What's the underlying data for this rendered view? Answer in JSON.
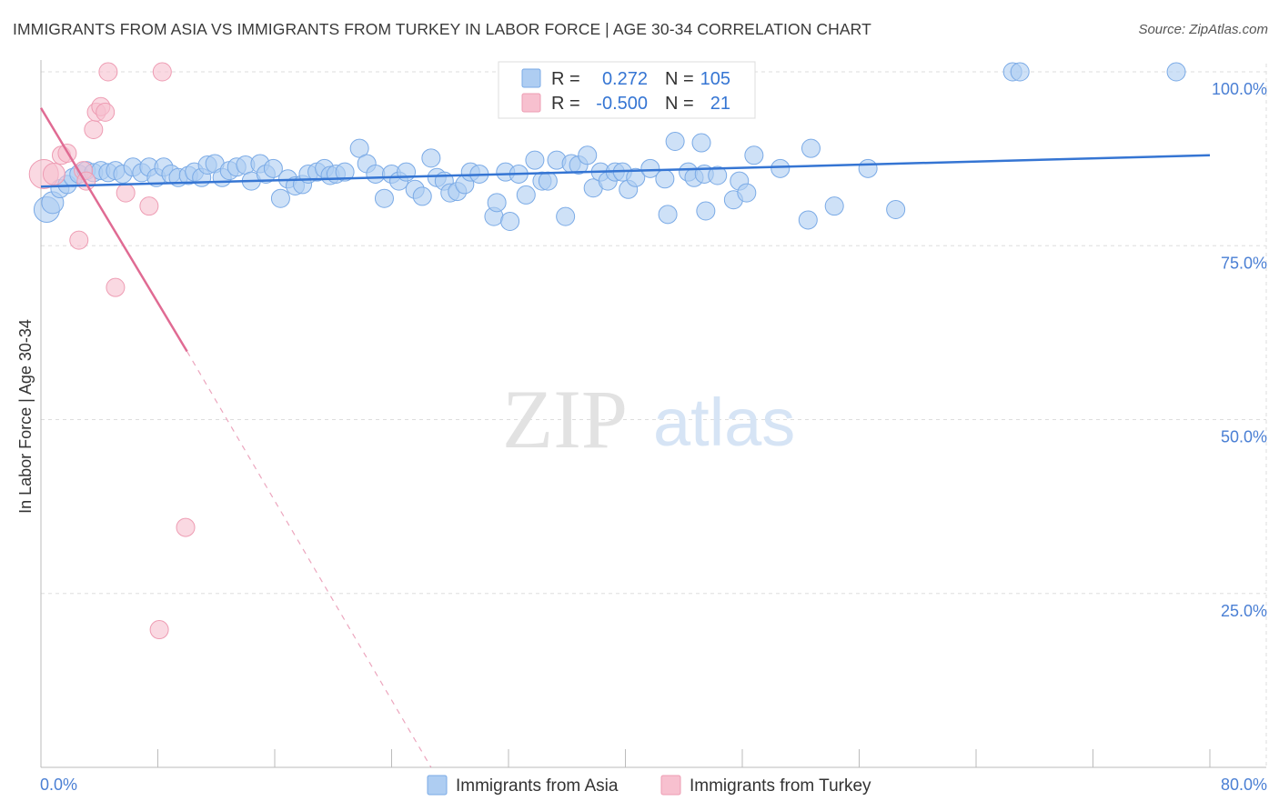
{
  "title": "IMMIGRANTS FROM ASIA VS IMMIGRANTS FROM TURKEY IN LABOR FORCE | AGE 30-34 CORRELATION CHART",
  "source": "Source: ZipAtlas.com",
  "watermark": {
    "zip": "ZIP",
    "atlas": "atlas"
  },
  "legend_top": [
    {
      "r_label": "R =",
      "r_value": "0.272",
      "n_label": "N =",
      "n_value": "105"
    },
    {
      "r_label": "R =",
      "r_value": "-0.500",
      "n_label": "N =",
      "n_value": "21"
    }
  ],
  "legend_bottom": [
    "Immigrants from Asia",
    "Immigrants from Turkey"
  ],
  "colors": {
    "asia_fill": "#aecdf2",
    "asia_stroke": "#7aaae6",
    "asia_line": "#3575d3",
    "turkey_fill": "#f7c0cf",
    "turkey_stroke": "#ee9cb3",
    "turkey_line": "#e06b93",
    "tick": "#4a7fd4",
    "grid": "#dddddd"
  },
  "chart_data": {
    "type": "scatter",
    "title": "IMMIGRANTS FROM ASIA VS IMMIGRANTS FROM TURKEY IN LABOR FORCE | AGE 30-34 CORRELATION CHART",
    "xlabel": "",
    "ylabel": "In Labor Force | Age 30-34",
    "xlim": [
      0,
      80
    ],
    "ylim": [
      0,
      100
    ],
    "x_tick_labels": [
      "0.0%",
      "80.0%"
    ],
    "y_ticks": [
      25,
      50,
      75,
      100
    ],
    "y_tick_labels": [
      "25.0%",
      "50.0%",
      "75.0%",
      "100.0%"
    ],
    "grid": true,
    "series": [
      {
        "name": "Immigrants from Asia",
        "r": 0.272,
        "n": 105,
        "trend": {
          "x": [
            0,
            80
          ],
          "y": [
            83.5,
            88.0
          ]
        },
        "points": [
          [
            0.4,
            80.2,
            14
          ],
          [
            0.8,
            81.2,
            12
          ],
          [
            1.3,
            83.2,
            10
          ],
          [
            1.8,
            83.8,
            10
          ],
          [
            2.2,
            84.8,
            10
          ],
          [
            2.6,
            85.3,
            10
          ],
          [
            3.1,
            85.8,
            10
          ],
          [
            3.6,
            85.5,
            10
          ],
          [
            4.1,
            85.8,
            10
          ],
          [
            4.6,
            85.5,
            10
          ],
          [
            5.1,
            85.8,
            10
          ],
          [
            5.6,
            85.3,
            10
          ],
          [
            6.3,
            86.3,
            10
          ],
          [
            6.9,
            85.5,
            10
          ],
          [
            7.4,
            86.3,
            10
          ],
          [
            7.9,
            84.8,
            10
          ],
          [
            8.4,
            86.3,
            10
          ],
          [
            8.9,
            85.3,
            10
          ],
          [
            9.4,
            84.8,
            10
          ],
          [
            10.1,
            85.1,
            10
          ],
          [
            10.5,
            85.6,
            10
          ],
          [
            11.0,
            84.8,
            10
          ],
          [
            11.4,
            86.6,
            10
          ],
          [
            11.9,
            86.8,
            10
          ],
          [
            12.4,
            84.8,
            10
          ],
          [
            12.9,
            85.8,
            10
          ],
          [
            13.4,
            86.3,
            10
          ],
          [
            14.0,
            86.6,
            10
          ],
          [
            14.4,
            84.3,
            10
          ],
          [
            15.0,
            86.8,
            10
          ],
          [
            15.4,
            85.3,
            10
          ],
          [
            15.9,
            86.1,
            10
          ],
          [
            16.4,
            81.8,
            10
          ],
          [
            16.9,
            84.6,
            10
          ],
          [
            17.4,
            83.6,
            10
          ],
          [
            17.9,
            83.8,
            10
          ],
          [
            18.3,
            85.3,
            10
          ],
          [
            18.9,
            85.6,
            10
          ],
          [
            19.4,
            86.1,
            10
          ],
          [
            19.8,
            85.1,
            10
          ],
          [
            20.2,
            85.3,
            10
          ],
          [
            20.8,
            85.6,
            10
          ],
          [
            21.8,
            89.0,
            10
          ],
          [
            22.3,
            86.8,
            10
          ],
          [
            22.9,
            85.3,
            10
          ],
          [
            23.5,
            81.8,
            10
          ],
          [
            24.0,
            85.3,
            10
          ],
          [
            24.5,
            84.3,
            10
          ],
          [
            25.0,
            85.6,
            10
          ],
          [
            25.6,
            83.1,
            10
          ],
          [
            26.1,
            82.1,
            10
          ],
          [
            26.7,
            87.6,
            10
          ],
          [
            27.1,
            84.8,
            10
          ],
          [
            27.6,
            84.3,
            10
          ],
          [
            28.0,
            82.6,
            10
          ],
          [
            28.5,
            82.8,
            10
          ],
          [
            29.0,
            83.8,
            10
          ],
          [
            29.4,
            85.6,
            10
          ],
          [
            30.0,
            85.3,
            10
          ],
          [
            31.0,
            79.2,
            10
          ],
          [
            31.2,
            81.2,
            10
          ],
          [
            31.8,
            85.6,
            10
          ],
          [
            32.1,
            78.5,
            10
          ],
          [
            32.7,
            85.3,
            10
          ],
          [
            33.2,
            82.3,
            10
          ],
          [
            33.8,
            87.3,
            10
          ],
          [
            34.3,
            84.3,
            10
          ],
          [
            34.7,
            84.3,
            10
          ],
          [
            35.3,
            87.3,
            10
          ],
          [
            35.9,
            79.2,
            10
          ],
          [
            36.3,
            86.8,
            10
          ],
          [
            36.8,
            86.6,
            10
          ],
          [
            37.4,
            88.0,
            10
          ],
          [
            37.8,
            83.3,
            10
          ],
          [
            38.3,
            85.6,
            10
          ],
          [
            38.8,
            84.3,
            10
          ],
          [
            39.3,
            85.6,
            10
          ],
          [
            39.8,
            85.6,
            10
          ],
          [
            40.2,
            83.1,
            10
          ],
          [
            40.7,
            84.8,
            10
          ],
          [
            41.7,
            86.1,
            10
          ],
          [
            42.7,
            84.6,
            10
          ],
          [
            42.9,
            79.5,
            10
          ],
          [
            43.4,
            90.0,
            10
          ],
          [
            44.3,
            85.6,
            10
          ],
          [
            44.7,
            84.8,
            10
          ],
          [
            45.4,
            85.3,
            10
          ],
          [
            45.2,
            89.8,
            10
          ],
          [
            45.5,
            80.0,
            10
          ],
          [
            46.3,
            85.1,
            10
          ],
          [
            47.4,
            81.6,
            10
          ],
          [
            47.8,
            84.3,
            10
          ],
          [
            48.3,
            82.6,
            10
          ],
          [
            48.8,
            88.0,
            10
          ],
          [
            50.6,
            86.1,
            10
          ],
          [
            52.5,
            78.7,
            10
          ],
          [
            52.7,
            89.0,
            10
          ],
          [
            54.3,
            80.7,
            10
          ],
          [
            56.6,
            86.1,
            10
          ],
          [
            58.5,
            80.2,
            10
          ],
          [
            66.5,
            100.0,
            10
          ],
          [
            67.0,
            100.0,
            10
          ],
          [
            77.7,
            100.0,
            10
          ]
        ]
      },
      {
        "name": "Immigrants from Turkey",
        "r": -0.5,
        "n": 21,
        "trend_solid": {
          "x": [
            0,
            10.0
          ],
          "y": [
            94.8,
            59.8
          ]
        },
        "trend_dashed": {
          "x": [
            10.0,
            26.7
          ],
          "y": [
            59.8,
            0
          ]
        },
        "points": [
          [
            0.2,
            85.3,
            16
          ],
          [
            0.9,
            85.3,
            12
          ],
          [
            1.4,
            88.0,
            10
          ],
          [
            1.8,
            88.3,
            10
          ],
          [
            2.6,
            75.8,
            10
          ],
          [
            2.9,
            85.8,
            10
          ],
          [
            3.1,
            84.3,
            10
          ],
          [
            3.6,
            91.7,
            10
          ],
          [
            3.8,
            94.2,
            10
          ],
          [
            4.1,
            95.0,
            10
          ],
          [
            4.4,
            94.2,
            10
          ],
          [
            4.6,
            100.0,
            10
          ],
          [
            5.1,
            69.0,
            10
          ],
          [
            5.8,
            82.6,
            10
          ],
          [
            7.4,
            80.7,
            10
          ],
          [
            8.3,
            100.0,
            10
          ],
          [
            8.1,
            19.8,
            10
          ],
          [
            9.9,
            34.5,
            10
          ]
        ]
      }
    ]
  }
}
